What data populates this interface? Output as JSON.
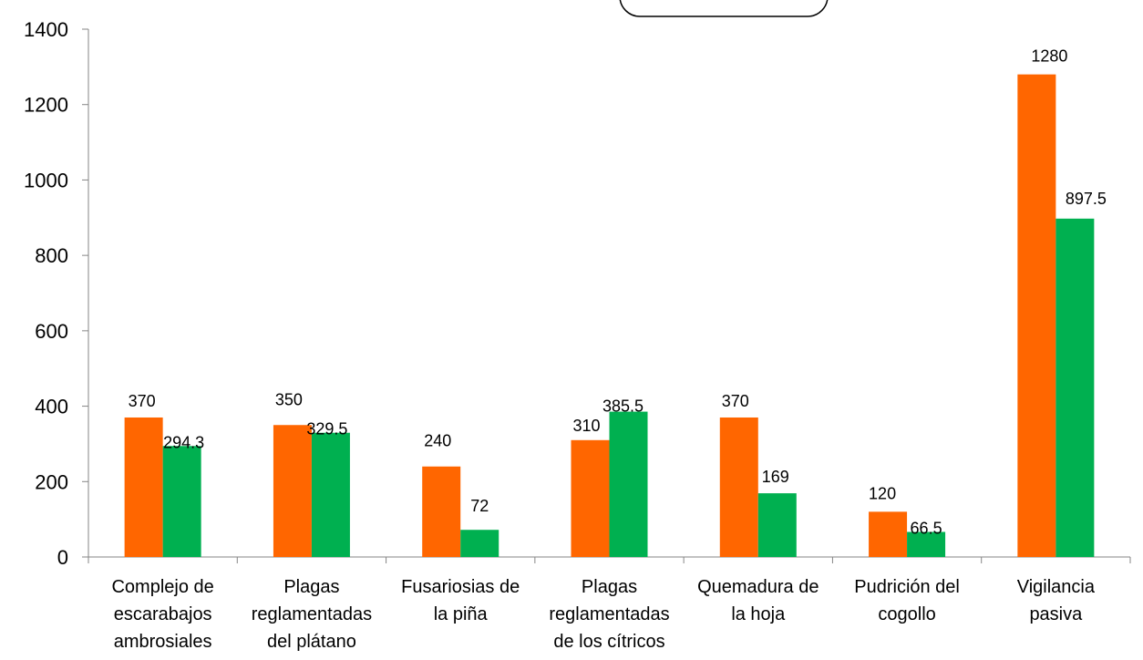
{
  "chart_data": {
    "type": "bar",
    "categories": [
      [
        "Complejo de",
        "escarabajos",
        "ambrosiales"
      ],
      [
        "Plagas",
        "reglamentadas",
        "del plátano"
      ],
      [
        "Fusariosias de",
        "la piña"
      ],
      [
        "Plagas",
        "reglamentadas",
        "de los cítricos"
      ],
      [
        "Quemadura de",
        "la hoja"
      ],
      [
        "Pudrición del",
        "cogollo"
      ],
      [
        "Vigilancia",
        "pasiva"
      ]
    ],
    "series": [
      {
        "values": [
          370,
          350,
          240,
          310,
          370,
          120,
          1280
        ],
        "labels": [
          "370",
          "350",
          "240",
          "310",
          "370",
          "120",
          "1280"
        ],
        "color": "#ff6600"
      },
      {
        "values": [
          294.3,
          329.5,
          72,
          385.5,
          169,
          66.5,
          897.5
        ],
        "labels": [
          "294.3",
          "329.5",
          "72",
          "385.5",
          "169",
          "66.5",
          "897.5"
        ],
        "color": "#00b050"
      }
    ],
    "yticks": [
      "0",
      "200",
      "400",
      "600",
      "800",
      "1000",
      "1200",
      "1400"
    ],
    "ylim": [
      0,
      1400
    ],
    "grid": false,
    "legend": "top-center (empty box)"
  }
}
